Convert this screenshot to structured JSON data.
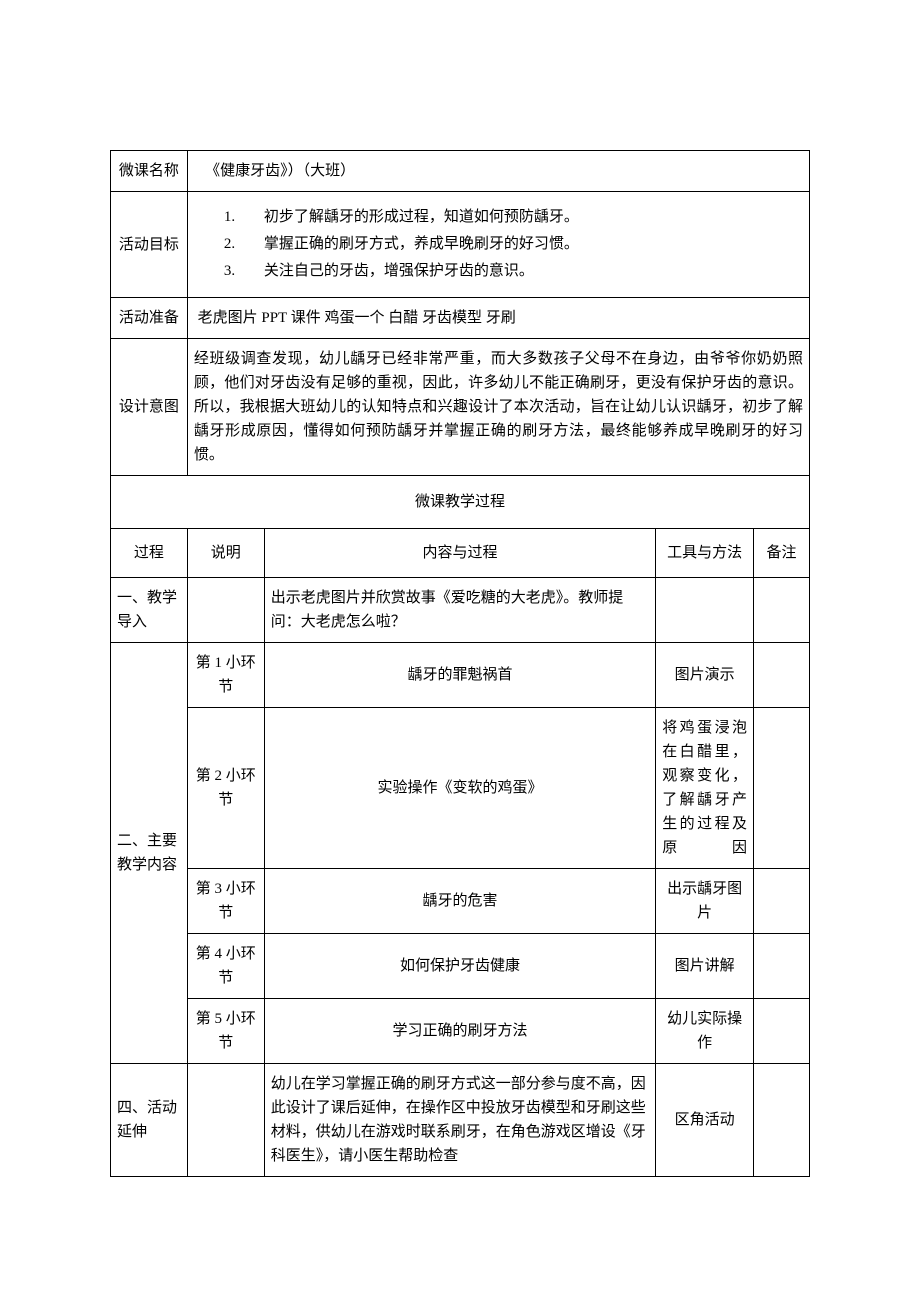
{
  "labels": {
    "course_name": "微课名称",
    "goals": "活动目标",
    "prep": "活动准备",
    "design": "设计意图",
    "section_title": "微课教学过程",
    "col_process": "过程",
    "col_desc": "说明",
    "col_content": "内容与过程",
    "col_tools": "工具与方法",
    "col_notes": "备注"
  },
  "course_title": "《健康牙齿》）（大班）",
  "goals": {
    "item1_num": "1.",
    "item1_text": "初步了解龋牙的形成过程，知道如何预防龋牙。",
    "item2_num": "2.",
    "item2_text": "掌握正确的刷牙方式，养成早晚刷牙的好习惯。",
    "item3_num": "3.",
    "item3_text": "关注自己的牙齿，增强保护牙齿的意识。"
  },
  "prep_text": "老虎图片 PPT 课件  鸡蛋一个  白醋  牙齿模型  牙刷",
  "design_text": "经班级调查发现，幼儿龋牙已经非常严重，而大多数孩子父母不在身边，由爷爷你奶奶照顾，他们对牙齿没有足够的重视，因此，许多幼儿不能正确刷牙，更没有保护牙齿的意识。所以，我根据大班幼儿的认知特点和兴趣设计了本次活动，旨在让幼儿认识龋牙，初步了解龋牙形成原因，懂得如何预防龋牙并掌握正确的刷牙方法，最终能够养成早晚刷牙的好习惯。",
  "rows": {
    "r1": {
      "process": "一、教学导入",
      "desc": "",
      "content": "出示老虎图片并欣赏故事《爱吃糖的大老虎》。教师提问：大老虎怎么啦？",
      "tools": "",
      "notes": ""
    },
    "r2": {
      "process": "二、主要教学内容",
      "s1": {
        "desc": "第 1 小环节",
        "content": "龋牙的罪魁祸首",
        "tools": "图片演示",
        "notes": ""
      },
      "s2": {
        "desc": "第 2 小环节",
        "content": "实验操作《变软的鸡蛋》",
        "tools": "将鸡蛋浸泡在白醋里，观察变化，了解龋牙产生的过程及原因",
        "notes": ""
      },
      "s3": {
        "desc": "第 3 小环节",
        "content": "龋牙的危害",
        "tools": "出示龋牙图片",
        "notes": ""
      },
      "s4": {
        "desc": "第 4 小环节",
        "content": "如何保护牙齿健康",
        "tools": "图片讲解",
        "notes": ""
      },
      "s5": {
        "desc": "第 5 小环节",
        "content": "学习正确的刷牙方法",
        "tools": "幼儿实际操作",
        "notes": ""
      }
    },
    "r3": {
      "process": "四、活动延伸",
      "desc": "",
      "content": "幼儿在学习掌握正确的刷牙方式这一部分参与度不高，因此设计了课后延伸，在操作区中投放牙齿模型和牙刷这些材料，供幼儿在游戏时联系刷牙，在角色游戏区增设《牙科医生》，请小医生帮助检查",
      "tools": "区角活动",
      "notes": ""
    }
  }
}
